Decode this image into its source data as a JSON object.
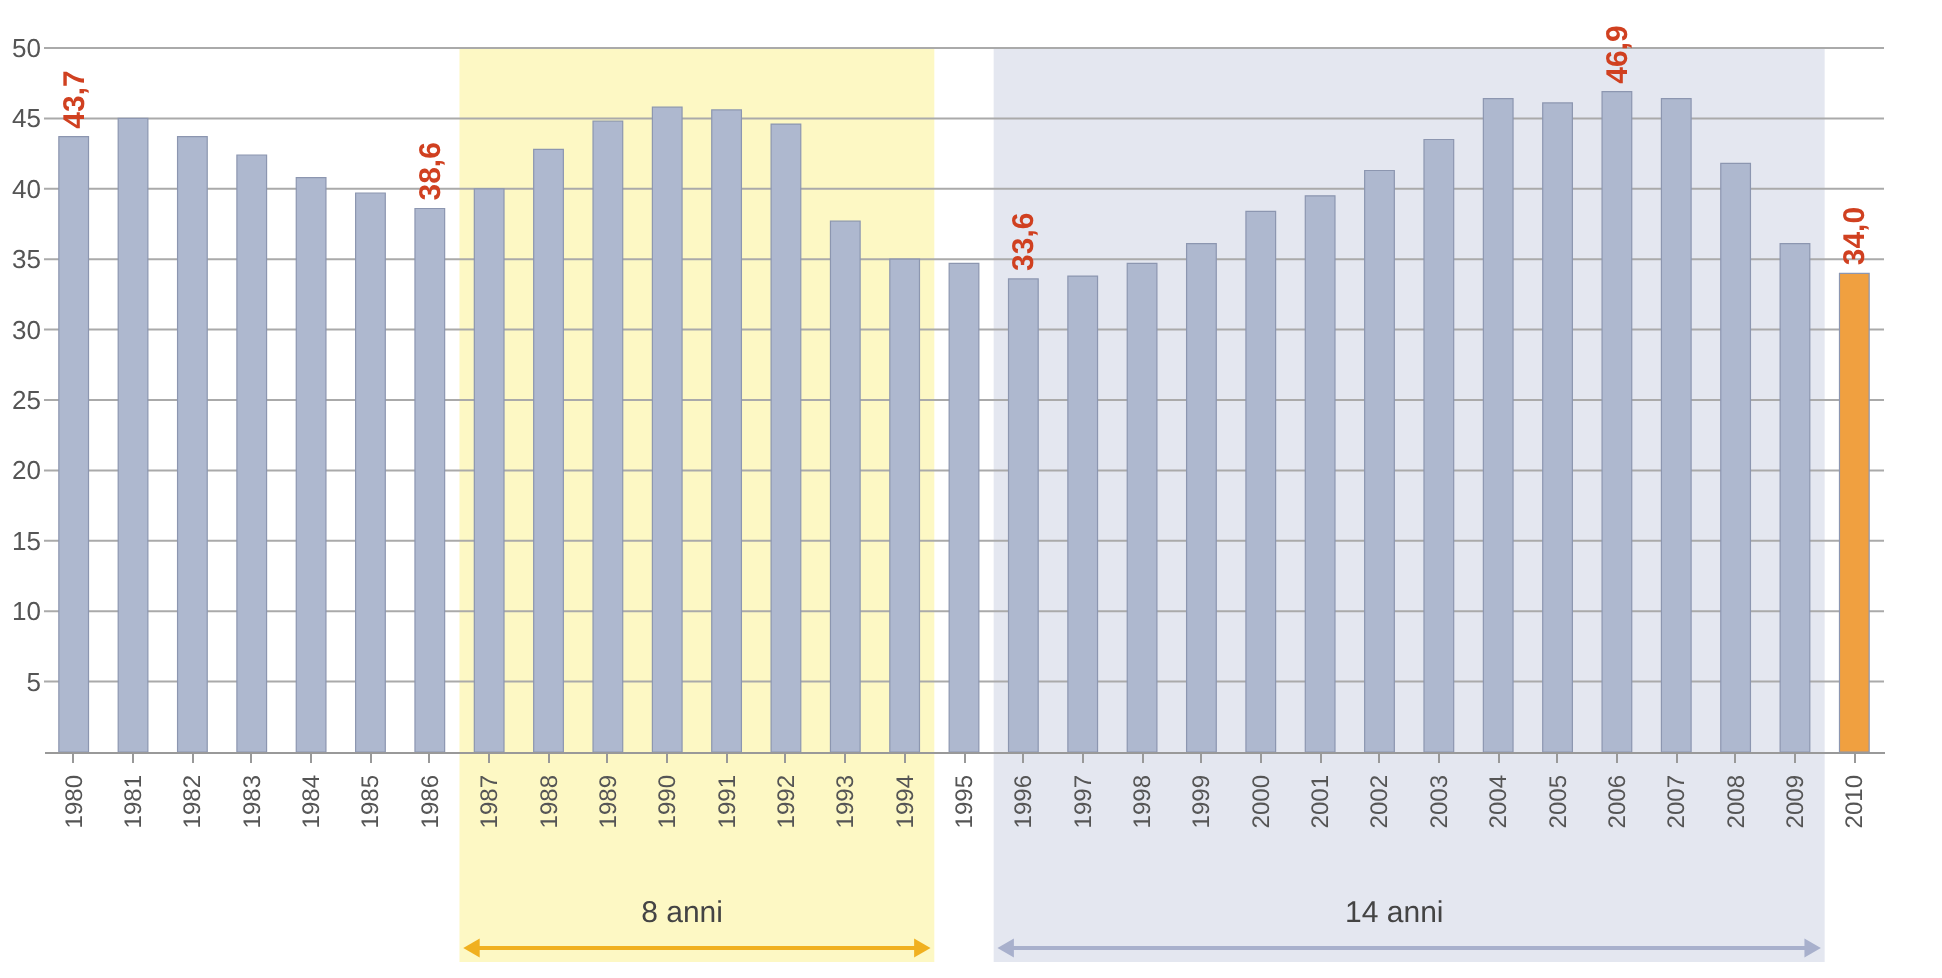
{
  "chart_data": {
    "type": "bar",
    "categories": [
      "1980",
      "1981",
      "1982",
      "1983",
      "1984",
      "1985",
      "1986",
      "1987",
      "1988",
      "1989",
      "1990",
      "1991",
      "1992",
      "1993",
      "1994",
      "1995",
      "1996",
      "1997",
      "1998",
      "1999",
      "2000",
      "2001",
      "2002",
      "2003",
      "2004",
      "2005",
      "2006",
      "2007",
      "2008",
      "2009",
      "2010"
    ],
    "values": [
      43.7,
      45.0,
      43.7,
      42.4,
      40.8,
      39.7,
      38.6,
      40.0,
      42.8,
      44.8,
      45.8,
      45.6,
      44.6,
      37.7,
      35.0,
      34.7,
      33.6,
      33.8,
      34.7,
      36.1,
      38.4,
      39.5,
      41.3,
      43.5,
      46.4,
      46.1,
      46.9,
      46.4,
      41.8,
      36.1,
      34.0
    ],
    "colors": [
      "#aeb8cf",
      "#aeb8cf",
      "#aeb8cf",
      "#aeb8cf",
      "#aeb8cf",
      "#aeb8cf",
      "#aeb8cf",
      "#aeb8cf",
      "#aeb8cf",
      "#aeb8cf",
      "#aeb8cf",
      "#aeb8cf",
      "#aeb8cf",
      "#aeb8cf",
      "#aeb8cf",
      "#aeb8cf",
      "#aeb8cf",
      "#aeb8cf",
      "#aeb8cf",
      "#aeb8cf",
      "#aeb8cf",
      "#aeb8cf",
      "#aeb8cf",
      "#aeb8cf",
      "#aeb8cf",
      "#aeb8cf",
      "#aeb8cf",
      "#aeb8cf",
      "#aeb8cf",
      "#aeb8cf",
      "#f0a040"
    ],
    "value_labels": [
      "43,7",
      null,
      null,
      null,
      null,
      null,
      "38,6",
      null,
      null,
      null,
      null,
      null,
      null,
      null,
      null,
      null,
      "33,6",
      null,
      null,
      null,
      null,
      null,
      null,
      null,
      null,
      null,
      "46,9",
      null,
      null,
      null,
      "34,0"
    ],
    "ylim": [
      0,
      50
    ],
    "yticks": [
      5,
      10,
      15,
      20,
      25,
      30,
      35,
      40,
      45,
      50
    ],
    "grid": "y",
    "bands": [
      {
        "axis": "x",
        "from": "1987",
        "to": "1994",
        "label": "8 anni",
        "color": "#fdf8c4"
      },
      {
        "axis": "x",
        "from": "1996",
        "to": "2009",
        "label": "14 anni",
        "color": "#e4e7f0"
      }
    ]
  }
}
